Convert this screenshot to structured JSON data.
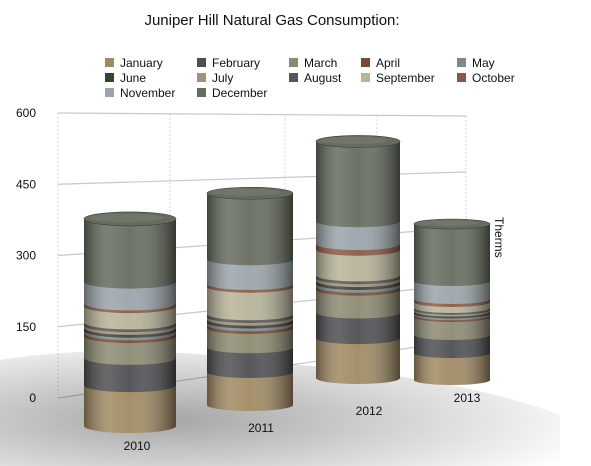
{
  "chart_data": {
    "type": "bar",
    "title": "Juniper Hill Natural Gas Consumption:",
    "ylabel": "Therms",
    "ylim": [
      0,
      600
    ],
    "yticks": [
      0,
      150,
      300,
      450,
      600
    ],
    "categories": [
      "2010",
      "2011",
      "2012",
      "2013"
    ],
    "legend_position": "top",
    "grid": true,
    "series": [
      {
        "name": "January",
        "color": "#a08a62",
        "values": [
          75,
          60,
          70,
          45
        ]
      },
      {
        "name": "February",
        "color": "#4e4f52",
        "values": [
          50,
          45,
          45,
          30
        ]
      },
      {
        "name": "March",
        "color": "#8d8a72",
        "values": [
          40,
          35,
          40,
          30
        ]
      },
      {
        "name": "April",
        "color": "#7a4a35",
        "values": [
          5,
          5,
          5,
          3
        ]
      },
      {
        "name": "May",
        "color": "#808a8e",
        "values": [
          5,
          5,
          5,
          3
        ]
      },
      {
        "name": "June",
        "color": "#3b4236",
        "values": [
          5,
          5,
          5,
          3
        ]
      },
      {
        "name": "July",
        "color": "#a49278",
        "values": [
          5,
          5,
          5,
          3
        ]
      },
      {
        "name": "August",
        "color": "#56565a",
        "values": [
          5,
          5,
          5,
          3
        ]
      },
      {
        "name": "September",
        "color": "#b8b499",
        "values": [
          30,
          50,
          45,
          10
        ]
      },
      {
        "name": "October",
        "color": "#8a5a45",
        "values": [
          5,
          5,
          10,
          5
        ]
      },
      {
        "name": "November",
        "color": "#9aa4aa",
        "values": [
          40,
          45,
          40,
          30
        ]
      },
      {
        "name": "December",
        "color": "#646c5e",
        "values": [
          115,
          120,
          140,
          95
        ]
      }
    ]
  }
}
